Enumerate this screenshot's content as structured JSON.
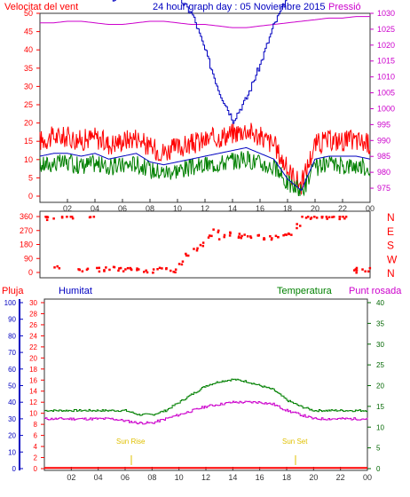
{
  "header": {
    "left_label": "Velocitat del vent",
    "title": "24 hour graph day : 05 Noviembre 2015",
    "right_label": "Pressió"
  },
  "lower_header": {
    "label_1": "Pluja",
    "label_2": "Humitat",
    "label_3": "Temperatura",
    "label_4": "Punt rosada"
  },
  "annotations": {
    "sunrise": "Sun Rise",
    "sunset": "Sun Set"
  },
  "colors": {
    "red": "#ff0000",
    "green": "#008000",
    "blue": "#0000c0",
    "magenta": "#cc00cc",
    "darkgreen": "#006600",
    "gold": "#e0c000",
    "axis": "#333333"
  },
  "chart_data": [
    {
      "type": "line",
      "series": [
        {
          "name": "Velocitat del vent",
          "axis": "left",
          "x": [
            0,
            1,
            2,
            3,
            4,
            5,
            6,
            7,
            8,
            9,
            10,
            11,
            12,
            13,
            14,
            15,
            16,
            17,
            18,
            19,
            20,
            21,
            22,
            23,
            24
          ],
          "values": [
            14,
            15,
            15,
            14,
            15,
            13,
            14,
            15,
            12,
            11,
            12,
            13,
            14,
            15,
            16,
            17,
            15,
            13,
            6,
            2,
            13,
            14,
            14,
            14,
            13
          ]
        },
        {
          "name": "Pressió",
          "axis": "right",
          "x": [
            0,
            1,
            2,
            3,
            4,
            5,
            6,
            7,
            8,
            9,
            10,
            11,
            12,
            13,
            14,
            15,
            16,
            17,
            18,
            19,
            20,
            21,
            22,
            23,
            24
          ],
          "values": [
            1027,
            1027,
            1027.5,
            1027.5,
            1027,
            1026.5,
            1026.5,
            1027,
            1027.5,
            1027.5,
            1027,
            1026.5,
            1026.5,
            1026,
            1025.5,
            1025.5,
            1026,
            1026.5,
            1027,
            1027.5,
            1028,
            1028.5,
            1028.5,
            1029,
            1029
          ]
        }
      ],
      "x_ticks": [
        "02",
        "04",
        "06",
        "08",
        "10",
        "12",
        "14",
        "16",
        "18",
        "20",
        "22",
        "00"
      ],
      "y_ticks_left": [
        "0",
        "5",
        "10",
        "15",
        "20",
        "25",
        "30",
        "35",
        "40",
        "45",
        "50"
      ],
      "y_ticks_right": [
        "975",
        "980",
        "985",
        "990",
        "995",
        "1000",
        "1005",
        "1010",
        "1015",
        "1020",
        "1025",
        "1030"
      ],
      "ylim_left": [
        0,
        50
      ],
      "ylim_right": [
        972.5,
        1030
      ]
    },
    {
      "type": "scatter",
      "x": [
        0.2,
        0.5,
        1,
        1.5,
        2,
        2.5,
        3,
        3.5,
        4,
        4.5,
        5,
        5.5,
        6,
        6.5,
        7,
        7.5,
        8,
        8.5,
        9,
        9.5,
        10,
        10.5,
        11,
        11.5,
        12,
        12.5,
        13,
        13.5,
        14,
        14.5,
        15,
        15.5,
        16,
        16.5,
        17,
        17.5,
        18,
        18.5,
        19,
        19.5,
        20,
        20.5,
        21,
        21.5,
        22,
        22.5,
        23,
        23.5
      ],
      "values": [
        360,
        350,
        30,
        360,
        360,
        10,
        20,
        360,
        20,
        20,
        30,
        20,
        20,
        15,
        20,
        10,
        10,
        30,
        20,
        10,
        60,
        120,
        150,
        180,
        240,
        270,
        230,
        250,
        240,
        230,
        225,
        230,
        220,
        225,
        230,
        235,
        240,
        300,
        360,
        360,
        360,
        360,
        360,
        360,
        360,
        10,
        20,
        20
      ],
      "y_ticks": [
        "0",
        "90",
        "180",
        "270",
        "360"
      ],
      "direction_labels": [
        "N",
        "W",
        "S",
        "E",
        "N"
      ],
      "ylim": [
        0,
        360
      ]
    },
    {
      "type": "line",
      "series": [
        {
          "name": "Pluja",
          "axis": "pluja",
          "x": [
            0,
            24
          ],
          "values": [
            0.4,
            0.4
          ]
        },
        {
          "name": "Humitat",
          "axis": "humitat",
          "x": [
            0,
            1,
            2,
            3,
            4,
            5,
            6,
            7,
            8,
            9,
            10,
            11,
            12,
            13,
            14,
            15,
            16,
            17,
            18,
            19,
            20,
            21,
            22,
            23,
            24
          ],
          "values": [
            85,
            87,
            86,
            86,
            86,
            85,
            86,
            86,
            87,
            87,
            85,
            82,
            75,
            68,
            63,
            67,
            73,
            80,
            85,
            87,
            87,
            87,
            87,
            87,
            87
          ]
        },
        {
          "name": "Temperatura",
          "axis": "temperatura",
          "x": [
            0,
            1,
            2,
            3,
            4,
            5,
            6,
            7,
            8,
            9,
            10,
            11,
            12,
            13,
            14,
            15,
            16,
            17,
            18,
            19,
            20,
            21,
            22,
            23,
            24
          ],
          "values": [
            14,
            14,
            14,
            14,
            14,
            14,
            14,
            13,
            13,
            14,
            16,
            18,
            20,
            21,
            21.5,
            21,
            20,
            19,
            16.5,
            15,
            14,
            14,
            14,
            14,
            14
          ]
        },
        {
          "name": "Punt rosada",
          "axis": "temperatura",
          "x": [
            0,
            1,
            2,
            3,
            4,
            5,
            6,
            7,
            8,
            9,
            10,
            11,
            12,
            13,
            14,
            15,
            16,
            17,
            18,
            19,
            20,
            21,
            22,
            23,
            24
          ],
          "values": [
            12,
            12,
            12,
            12,
            12,
            12,
            11.5,
            11,
            11,
            12,
            13,
            14,
            15,
            15.5,
            16,
            16,
            16,
            15.5,
            14,
            13,
            12,
            12,
            12,
            12,
            12
          ]
        }
      ],
      "x_ticks": [
        "02",
        "04",
        "06",
        "08",
        "10",
        "12",
        "14",
        "16",
        "18",
        "20",
        "22",
        "00"
      ],
      "y_ticks_pluja": [
        "0",
        "10",
        "20",
        "30",
        "40",
        "50",
        "60",
        "70",
        "80",
        "90",
        "100"
      ],
      "y_ticks_humitat": [
        "0",
        "2",
        "4",
        "6",
        "8",
        "10",
        "12",
        "14",
        "16",
        "18",
        "20",
        "22",
        "24",
        "26",
        "28",
        "30"
      ],
      "y_ticks_temperatura": [
        "0",
        "5",
        "10",
        "15",
        "20",
        "25",
        "30",
        "35",
        "40"
      ],
      "ylim_pluja": [
        0,
        100
      ],
      "ylim_humitat": [
        0,
        30
      ],
      "ylim_temperatura": [
        0,
        40
      ]
    }
  ]
}
